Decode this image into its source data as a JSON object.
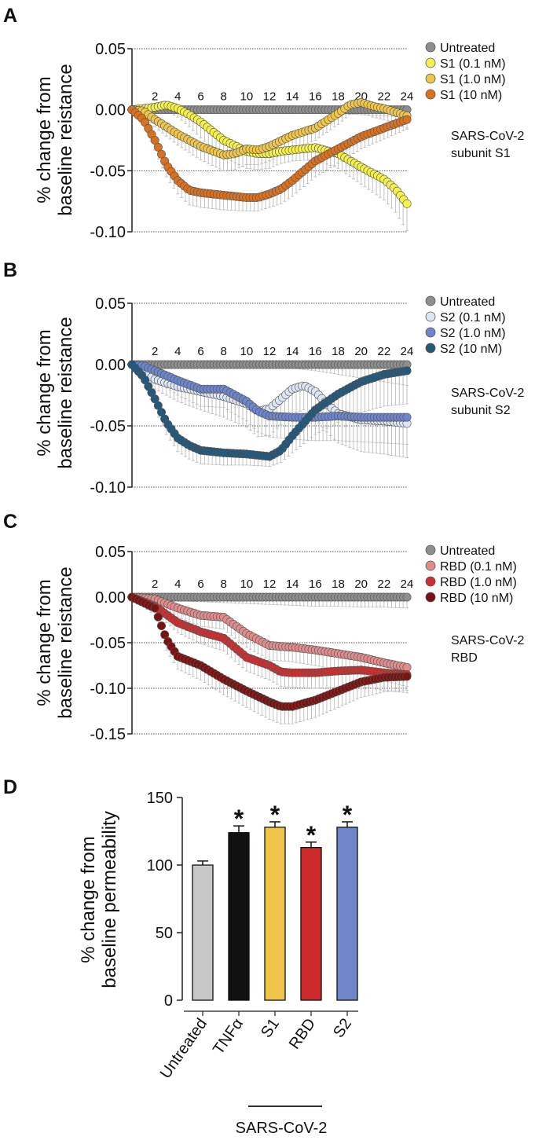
{
  "figure_domain": "scientific multi-panel figure",
  "colors": {
    "untreated": "#8e8e8e",
    "s1_01": "#f6f04a",
    "s1_10": "#f0c64a",
    "s1_100": "#d9711f",
    "s2_01": "#dde6f4",
    "s2_10": "#6d85cc",
    "s2_100": "#23587a",
    "rbd_01": "#e08c8c",
    "rbd_10": "#cc2f2f",
    "rbd_100": "#7a1212",
    "bar_untreated": "#c8c8c8",
    "bar_tnf": "#111111",
    "bar_s1": "#eec44a",
    "bar_rbd": "#cc2a2a",
    "bar_s2": "#6f86c8",
    "error": "#b9b9b9"
  },
  "chart_data": [
    {
      "type": "line",
      "panel": "A",
      "ylabel": [
        "% change from",
        "baseline reistance"
      ],
      "ylim": [
        -0.1,
        0.05
      ],
      "yticks": [
        "0.05",
        "0.00",
        "-0.05",
        "-0.10"
      ],
      "yticks_values": [
        0.05,
        0.0,
        -0.05,
        -0.1
      ],
      "xlim": [
        0,
        24
      ],
      "xticks": [
        "2",
        "4",
        "6",
        "8",
        "10",
        "12",
        "14",
        "16",
        "18",
        "20",
        "22",
        "24"
      ],
      "annotation": [
        "SARS-CoV-2",
        "subunit S1"
      ],
      "series": [
        {
          "name": "Untreated",
          "color": "#8e8e8e",
          "x": [
            0,
            2,
            4,
            6,
            8,
            10,
            12,
            14,
            16,
            18,
            20,
            22,
            24
          ],
          "y": [
            0,
            0,
            0,
            0,
            0,
            0,
            0,
            0,
            0,
            0,
            0,
            0,
            0
          ],
          "err": [
            0,
            0.001,
            0.001,
            0.001,
            0.001,
            0.001,
            0.001,
            0.001,
            0.002,
            0.003,
            0.004,
            0.005,
            0.006
          ]
        },
        {
          "name": "S1 (0.1 nM)",
          "color": "#f6f04a",
          "x": [
            0,
            2,
            3,
            4,
            5,
            6,
            8,
            10,
            11,
            12,
            13,
            14,
            16,
            18,
            20,
            22,
            23,
            24
          ],
          "y": [
            0,
            0.002,
            0.004,
            0.001,
            -0.004,
            -0.01,
            -0.025,
            -0.034,
            -0.036,
            -0.036,
            -0.034,
            -0.033,
            -0.031,
            -0.036,
            -0.047,
            -0.057,
            -0.065,
            -0.077
          ],
          "err": [
            0,
            0.003,
            0.005,
            0.007,
            0.01,
            0.013,
            0.014,
            0.014,
            0.013,
            0.012,
            0.01,
            0.009,
            0.01,
            0.012,
            0.014,
            0.017,
            0.019,
            0.022
          ]
        },
        {
          "name": "S1 (1.0 nM)",
          "color": "#f0c64a",
          "x": [
            0,
            1,
            2,
            4,
            6,
            8,
            9,
            10,
            11,
            12,
            14,
            16,
            18,
            19,
            20,
            21,
            22,
            24
          ],
          "y": [
            0,
            -0.001,
            -0.008,
            -0.02,
            -0.03,
            -0.037,
            -0.036,
            -0.032,
            -0.033,
            -0.03,
            -0.021,
            -0.015,
            -0.003,
            0.004,
            0.006,
            0.003,
            0.001,
            -0.005
          ],
          "err": [
            0,
            0.003,
            0.006,
            0.009,
            0.011,
            0.013,
            0.013,
            0.013,
            0.012,
            0.012,
            0.011,
            0.01,
            0.009,
            0.008,
            0.008,
            0.009,
            0.009,
            0.01
          ]
        },
        {
          "name": "S1 (10 nM)",
          "color": "#d9711f",
          "x": [
            0,
            1,
            2,
            3,
            4,
            5,
            6,
            8,
            10,
            11,
            12,
            13,
            14,
            16,
            18,
            20,
            22,
            24
          ],
          "y": [
            0,
            -0.008,
            -0.025,
            -0.045,
            -0.058,
            -0.066,
            -0.068,
            -0.07,
            -0.072,
            -0.072,
            -0.069,
            -0.065,
            -0.058,
            -0.042,
            -0.032,
            -0.022,
            -0.015,
            -0.008
          ],
          "err": [
            0,
            0.004,
            0.008,
            0.01,
            0.011,
            0.012,
            0.012,
            0.012,
            0.011,
            0.011,
            0.011,
            0.012,
            0.013,
            0.013,
            0.012,
            0.01,
            0.009,
            0.008
          ]
        }
      ]
    },
    {
      "type": "line",
      "panel": "B",
      "ylabel": [
        "% change from",
        "baseline reistance"
      ],
      "ylim": [
        -0.1,
        0.05
      ],
      "yticks": [
        "0.05",
        "0.00",
        "-0.05",
        "-0.10"
      ],
      "yticks_values": [
        0.05,
        0.0,
        -0.05,
        -0.1
      ],
      "xlim": [
        0,
        24
      ],
      "xticks": [
        "2",
        "4",
        "6",
        "8",
        "10",
        "12",
        "14",
        "16",
        "18",
        "20",
        "22",
        "24"
      ],
      "annotation": [
        "SARS-CoV-2",
        "subunit S2"
      ],
      "series": [
        {
          "name": "Untreated",
          "color": "#8e8e8e",
          "x": [
            0,
            2,
            4,
            6,
            8,
            10,
            12,
            14,
            16,
            18,
            20,
            22,
            24
          ],
          "y": [
            0,
            0,
            0,
            0,
            0,
            0,
            0,
            0,
            0,
            0,
            0,
            0,
            0
          ],
          "err": [
            0,
            0.001,
            0.001,
            0.001,
            0.001,
            0.001,
            0.002,
            0.003,
            0.005,
            0.008,
            0.011,
            0.014,
            0.017
          ]
        },
        {
          "name": "S2 (0.1 nM)",
          "color": "#dde6f4",
          "x": [
            0,
            1,
            2,
            4,
            6,
            8,
            10,
            11,
            12,
            13,
            14,
            15,
            16,
            17,
            18,
            20,
            22,
            24
          ],
          "y": [
            0,
            -0.006,
            -0.012,
            -0.018,
            -0.022,
            -0.026,
            -0.032,
            -0.038,
            -0.036,
            -0.028,
            -0.02,
            -0.017,
            -0.022,
            -0.032,
            -0.04,
            -0.045,
            -0.046,
            -0.048
          ],
          "err": [
            0,
            0.004,
            0.008,
            0.012,
            0.015,
            0.017,
            0.019,
            0.021,
            0.022,
            0.021,
            0.02,
            0.02,
            0.022,
            0.023,
            0.024,
            0.026,
            0.027,
            0.028
          ]
        },
        {
          "name": "S2 (1.0 nM)",
          "color": "#6d85cc",
          "x": [
            0,
            1,
            2,
            4,
            6,
            8,
            10,
            11,
            12,
            14,
            16,
            18,
            20,
            22,
            24
          ],
          "y": [
            0,
            -0.001,
            -0.005,
            -0.013,
            -0.02,
            -0.02,
            -0.03,
            -0.038,
            -0.042,
            -0.043,
            -0.043,
            -0.042,
            -0.043,
            -0.043,
            -0.043
          ],
          "err": [
            0,
            0.004,
            0.008,
            0.012,
            0.014,
            0.015,
            0.016,
            0.017,
            0.017,
            0.018,
            0.019,
            0.02,
            0.02,
            0.021,
            0.022
          ]
        },
        {
          "name": "S2 (10 nM)",
          "color": "#23587a",
          "x": [
            0,
            1,
            2,
            3,
            4,
            5,
            6,
            8,
            10,
            12,
            13,
            14,
            16,
            18,
            20,
            22,
            24
          ],
          "y": [
            0,
            -0.01,
            -0.028,
            -0.047,
            -0.06,
            -0.066,
            -0.07,
            -0.072,
            -0.073,
            -0.075,
            -0.07,
            -0.058,
            -0.037,
            -0.024,
            -0.014,
            -0.008,
            -0.005
          ],
          "err": [
            0,
            0.004,
            0.008,
            0.01,
            0.011,
            0.011,
            0.011,
            0.01,
            0.009,
            0.008,
            0.01,
            0.014,
            0.02,
            0.023,
            0.025,
            0.026,
            0.027
          ]
        }
      ]
    },
    {
      "type": "line",
      "panel": "C",
      "ylabel": [
        "% change from",
        "baseline reistance"
      ],
      "ylim": [
        -0.15,
        0.05
      ],
      "yticks": [
        "0.05",
        "0.00",
        "-0.05",
        "-0.10",
        "-0.15"
      ],
      "yticks_values": [
        0.05,
        0.0,
        -0.05,
        -0.1,
        -0.15
      ],
      "xlim": [
        0,
        24
      ],
      "xticks": [
        "2",
        "4",
        "6",
        "8",
        "10",
        "12",
        "14",
        "16",
        "18",
        "20",
        "22",
        "24"
      ],
      "annotation": [
        "SARS-CoV-2",
        "RBD"
      ],
      "series": [
        {
          "name": "Untreated",
          "color": "#8e8e8e",
          "x": [
            0,
            2,
            4,
            6,
            8,
            10,
            12,
            14,
            16,
            18,
            20,
            22,
            24
          ],
          "y": [
            0,
            0,
            0,
            0,
            0,
            0,
            0,
            0,
            0,
            0,
            0,
            0,
            0
          ],
          "err": [
            0,
            0.003,
            0.004,
            0.005,
            0.006,
            0.007,
            0.008,
            0.009,
            0.01,
            0.01,
            0.011,
            0.011,
            0.012
          ]
        },
        {
          "name": "RBD (0.1 nM)",
          "color": "#e08c8c",
          "x": [
            0,
            2,
            4,
            6,
            8,
            10,
            12,
            14,
            16,
            18,
            20,
            22,
            24
          ],
          "y": [
            0,
            -0.002,
            -0.012,
            -0.02,
            -0.022,
            -0.04,
            -0.053,
            -0.055,
            -0.058,
            -0.062,
            -0.066,
            -0.072,
            -0.077
          ],
          "err": [
            0,
            0.006,
            0.01,
            0.012,
            0.013,
            0.015,
            0.016,
            0.016,
            0.017,
            0.018,
            0.019,
            0.02,
            0.021
          ]
        },
        {
          "name": "RBD (1.0 nM)",
          "color": "#cc2f2f",
          "x": [
            0,
            2,
            4,
            6,
            8,
            10,
            12,
            13,
            14,
            16,
            18,
            20,
            22,
            24
          ],
          "y": [
            0,
            -0.01,
            -0.028,
            -0.038,
            -0.045,
            -0.066,
            -0.075,
            -0.082,
            -0.083,
            -0.083,
            -0.081,
            -0.08,
            -0.083,
            -0.085
          ],
          "err": [
            0,
            0.007,
            0.011,
            0.013,
            0.014,
            0.015,
            0.016,
            0.016,
            0.016,
            0.017,
            0.018,
            0.018,
            0.019,
            0.02
          ]
        },
        {
          "name": "RBD (10 nM)",
          "color": "#7a1212",
          "x": [
            0,
            2,
            3,
            4,
            6,
            8,
            10,
            12,
            13,
            14,
            16,
            18,
            20,
            22,
            24
          ],
          "y": [
            0,
            -0.012,
            -0.046,
            -0.065,
            -0.075,
            -0.09,
            -0.103,
            -0.115,
            -0.12,
            -0.12,
            -0.113,
            -0.103,
            -0.093,
            -0.088,
            -0.087
          ],
          "err": [
            0,
            0.008,
            0.012,
            0.014,
            0.016,
            0.017,
            0.018,
            0.019,
            0.019,
            0.019,
            0.019,
            0.018,
            0.017,
            0.016,
            0.015
          ]
        }
      ]
    },
    {
      "type": "bar",
      "panel": "D",
      "ylabel": [
        "% change from",
        "baseline permeability"
      ],
      "ylim": [
        0,
        150
      ],
      "yticks": [
        "150",
        "100",
        "50",
        "0"
      ],
      "yticks_values": [
        150,
        100,
        50,
        0
      ],
      "categories": [
        "Untreated",
        "TNFα",
        "S1",
        "RBD",
        "S2"
      ],
      "values": [
        100,
        124,
        128,
        113,
        128
      ],
      "errors": [
        3,
        5,
        4,
        4,
        4
      ],
      "significance": [
        "",
        "*",
        "*",
        "*",
        "*"
      ],
      "bar_colors": [
        "#c8c8c8",
        "#111111",
        "#eec44a",
        "#cc2a2a",
        "#6f86c8"
      ],
      "group_label": "SARS-CoV-2"
    }
  ]
}
